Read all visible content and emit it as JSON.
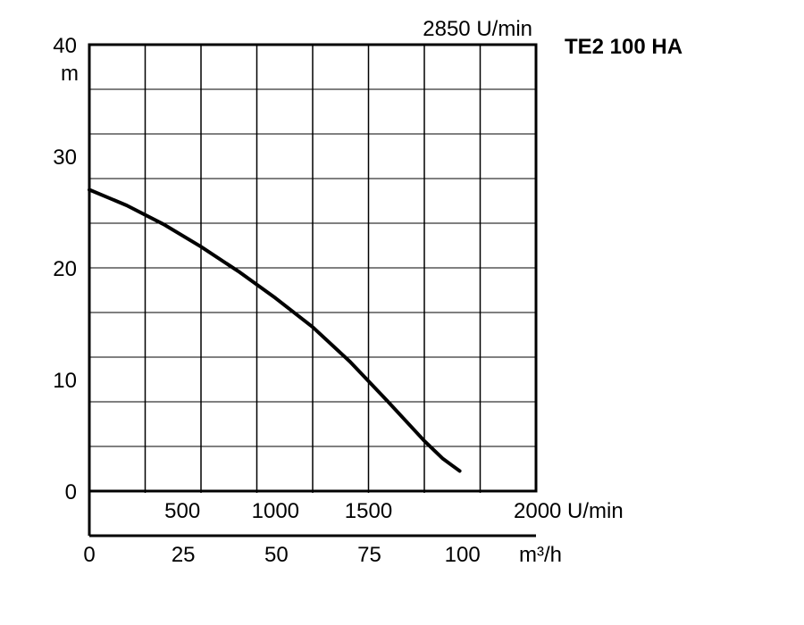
{
  "chart_data": {
    "type": "line",
    "title": "TE2 100 HA",
    "speed_label": "2850 U/min",
    "ylabel": "m",
    "xlabel": "m³/h",
    "ylim": [
      0,
      40
    ],
    "xlim": [
      0,
      120
    ],
    "y_ticks": [
      "0",
      "10",
      "20",
      "30",
      "40"
    ],
    "y_tick_values": [
      0,
      10,
      20,
      30,
      40
    ],
    "x_ticks": [
      "0",
      "25",
      "50",
      "75",
      "100"
    ],
    "x_tick_values": [
      0,
      25,
      50,
      75,
      100
    ],
    "speed_axis": {
      "unit_label": "U/min",
      "ticks": [
        "500",
        "1000",
        "1500",
        "2000 U/min"
      ],
      "tick_values": [
        500,
        1000,
        1500,
        2000
      ]
    },
    "grid": true,
    "series": [
      {
        "x": [
          0,
          10,
          20,
          30,
          40,
          50,
          60,
          70,
          80,
          90,
          95,
          99.5
        ],
        "y": [
          27.0,
          25.6,
          23.9,
          21.9,
          19.7,
          17.3,
          14.7,
          11.6,
          8.1,
          4.5,
          2.9,
          1.8
        ]
      }
    ]
  }
}
